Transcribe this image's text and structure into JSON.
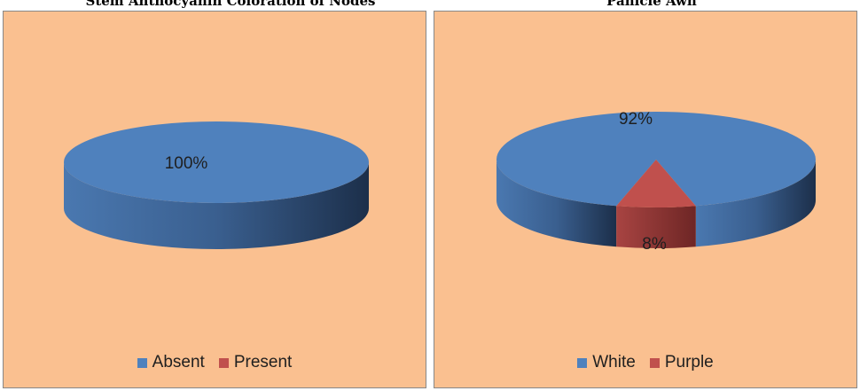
{
  "titles": {
    "left": "Stem Anthocyanin Coloration of Nodes",
    "right": "Panicle Awn"
  },
  "colors": {
    "background": "#fac090",
    "series1_top": "#4f81bd",
    "series2_top": "#c0504d"
  },
  "chart_data": [
    {
      "type": "pie",
      "title": "Stem Anthocyanin Coloration of Nodes",
      "legend_position": "bottom",
      "categories": [
        "Absent",
        "Present"
      ],
      "values": [
        100,
        0
      ],
      "data_labels": [
        "100%",
        ""
      ],
      "colors": [
        "#4f81bd",
        "#c0504d"
      ]
    },
    {
      "type": "pie",
      "title": "Panicle Awn",
      "legend_position": "bottom",
      "categories": [
        "White",
        "Purple"
      ],
      "values": [
        92,
        8
      ],
      "data_labels": [
        "92%",
        "8%"
      ],
      "colors": [
        "#4f81bd",
        "#c0504d"
      ]
    }
  ]
}
